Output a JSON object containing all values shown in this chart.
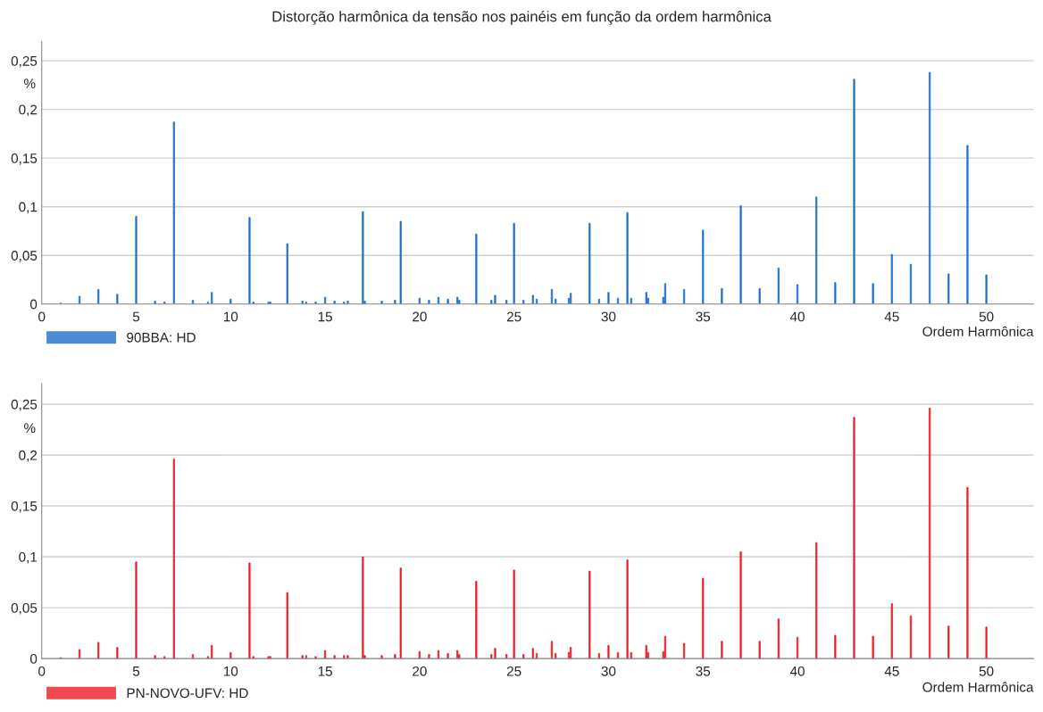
{
  "chart_data": [
    {
      "type": "bar",
      "title": "Distorção harmônica da tensão nos painéis em função da ordem harmônica",
      "xlabel": "Ordem Harmônica",
      "ylabel": "%",
      "x": [
        1,
        2,
        3,
        4,
        5,
        6,
        6.5,
        7,
        8,
        8.8,
        9,
        10,
        11,
        11.2,
        12,
        12.1,
        13,
        13.8,
        14,
        14.5,
        15,
        15.5,
        16,
        16.2,
        17,
        17.1,
        18,
        18.7,
        19,
        20,
        20.5,
        21,
        21.5,
        22,
        22.1,
        23,
        23.8,
        24,
        24.6,
        25,
        25.5,
        26,
        26.2,
        27,
        27.2,
        27.9,
        28,
        29,
        29.5,
        30,
        30.5,
        31,
        31.2,
        32,
        32.1,
        32.9,
        33,
        34,
        35,
        36,
        37,
        38,
        39,
        40,
        41,
        42,
        43,
        44,
        45,
        46,
        47,
        48,
        49,
        50
      ],
      "series": [
        {
          "name": "90BBA: HD",
          "color": "#1f6fcc",
          "values": [
            0.001,
            0.008,
            0.015,
            0.01,
            0.09,
            0.003,
            0.002,
            0.187,
            0.004,
            0.002,
            0.012,
            0.005,
            0.089,
            0.002,
            0.002,
            0.002,
            0.062,
            0.003,
            0.002,
            0.002,
            0.007,
            0.003,
            0.002,
            0.003,
            0.095,
            0.003,
            0.003,
            0.004,
            0.085,
            0.006,
            0.004,
            0.007,
            0.005,
            0.007,
            0.004,
            0.072,
            0.004,
            0.009,
            0.004,
            0.083,
            0.004,
            0.009,
            0.005,
            0.015,
            0.005,
            0.006,
            0.011,
            0.083,
            0.005,
            0.012,
            0.006,
            0.094,
            0.006,
            0.012,
            0.006,
            0.007,
            0.021,
            0.015,
            0.076,
            0.016,
            0.101,
            0.016,
            0.037,
            0.02,
            0.11,
            0.022,
            0.231,
            0.021,
            0.051,
            0.041,
            0.238,
            0.031,
            0.163,
            0.03
          ]
        }
      ],
      "xlim": [
        0,
        52.5
      ],
      "xticks": [
        0,
        5,
        10,
        15,
        20,
        25,
        30,
        35,
        40,
        45,
        50
      ],
      "ylim": [
        0,
        0.27
      ],
      "yticks": [
        0,
        {
          "value": 0.05,
          "label": "0,05"
        },
        {
          "value": 0.1,
          "label": "0,1"
        },
        {
          "value": 0.15,
          "label": "0,15"
        },
        {
          "value": 0.2,
          "label": "0,2"
        },
        {
          "value": 0.25,
          "label": "0,25"
        }
      ],
      "grid": "y",
      "legend": "bottom left"
    },
    {
      "type": "bar",
      "xlabel": "Ordem Harmônica",
      "ylabel": "%",
      "x": [
        1,
        2,
        3,
        4,
        5,
        6,
        6.5,
        7,
        8,
        8.8,
        9,
        10,
        11,
        11.2,
        12,
        12.1,
        13,
        13.8,
        14,
        14.5,
        15,
        15.5,
        16,
        16.2,
        17,
        17.1,
        18,
        18.7,
        19,
        20,
        20.5,
        21,
        21.5,
        22,
        22.1,
        23,
        23.8,
        24,
        24.6,
        25,
        25.5,
        26,
        26.2,
        27,
        27.2,
        27.9,
        28,
        29,
        29.5,
        30,
        30.5,
        31,
        31.2,
        32,
        32.1,
        32.9,
        33,
        34,
        35,
        36,
        37,
        38,
        39,
        40,
        41,
        42,
        43,
        44,
        45,
        46,
        47,
        48,
        49,
        50
      ],
      "series": [
        {
          "name": "PN-NOVO-UFV: HD",
          "color": "#ee1c25",
          "values": [
            0.001,
            0.009,
            0.016,
            0.011,
            0.095,
            0.003,
            0.002,
            0.196,
            0.004,
            0.002,
            0.013,
            0.006,
            0.094,
            0.002,
            0.002,
            0.002,
            0.065,
            0.003,
            0.003,
            0.002,
            0.008,
            0.003,
            0.003,
            0.003,
            0.1,
            0.003,
            0.003,
            0.004,
            0.089,
            0.007,
            0.004,
            0.008,
            0.005,
            0.008,
            0.004,
            0.076,
            0.004,
            0.01,
            0.004,
            0.087,
            0.004,
            0.01,
            0.005,
            0.017,
            0.005,
            0.006,
            0.011,
            0.086,
            0.005,
            0.013,
            0.006,
            0.097,
            0.006,
            0.013,
            0.006,
            0.007,
            0.022,
            0.015,
            0.079,
            0.017,
            0.105,
            0.017,
            0.039,
            0.021,
            0.114,
            0.023,
            0.237,
            0.022,
            0.054,
            0.042,
            0.246,
            0.032,
            0.168,
            0.031
          ]
        }
      ],
      "xlim": [
        0,
        52.5
      ],
      "xticks": [
        0,
        5,
        10,
        15,
        20,
        25,
        30,
        35,
        40,
        45,
        50
      ],
      "ylim": [
        0,
        0.27
      ],
      "yticks": [
        0,
        {
          "value": 0.05,
          "label": "0,05"
        },
        {
          "value": 0.1,
          "label": "0,1"
        },
        {
          "value": 0.15,
          "label": "0,15"
        },
        {
          "value": 0.2,
          "label": "0,2"
        },
        {
          "value": 0.25,
          "label": "0,25"
        }
      ],
      "grid": "y",
      "legend": "bottom left"
    }
  ]
}
